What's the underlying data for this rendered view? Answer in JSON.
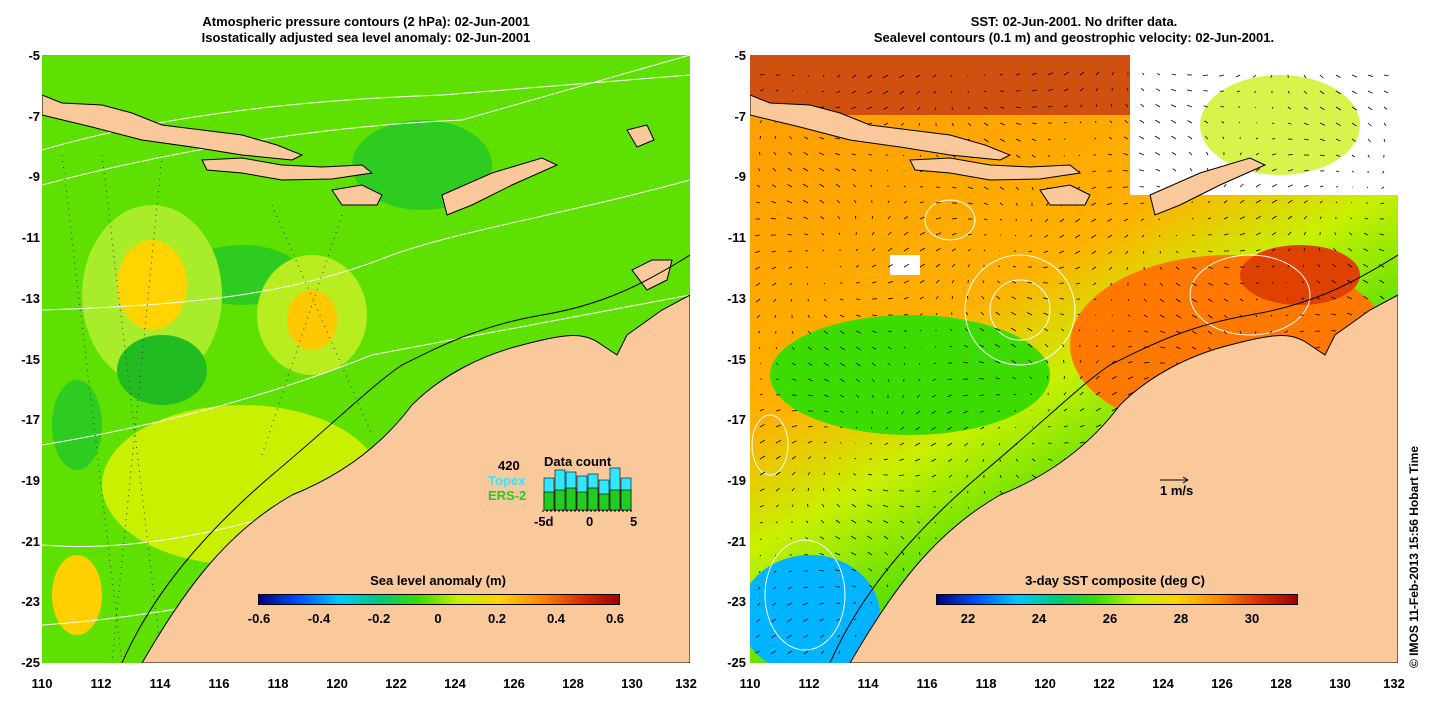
{
  "left_panel": {
    "title_line1": "Atmospheric pressure contours (2 hPa): 02-Jun-2001",
    "title_line2": "Isostatically adjusted sea level anomaly: 02-Jun-2001",
    "colorbar": {
      "title": "Sea level anomaly (m)",
      "ticks": [
        "-0.6",
        "-0.4",
        "-0.2",
        "0",
        "0.2",
        "0.4",
        "0.6"
      ],
      "colors": [
        "#00007f",
        "#0050ff",
        "#00c8ff",
        "#00c878",
        "#3cdc00",
        "#c8f000",
        "#ffd200",
        "#ff8c00",
        "#e03000",
        "#a00000"
      ]
    },
    "inset": {
      "max_count": "420",
      "title": "Data count",
      "series": [
        {
          "name": "Topex",
          "color": "#33e6ff"
        },
        {
          "name": "ERS-2",
          "color": "#22cc22"
        }
      ],
      "xticks": [
        "-5d",
        "0",
        "5"
      ]
    }
  },
  "right_panel": {
    "title_line1": "SST: 02-Jun-2001. No drifter data.",
    "title_line2": "Sealevel contours (0.1 m) and geostrophic velocity: 02-Jun-2001.",
    "scale_label": "1 m/s",
    "colorbar": {
      "title": "3-day SST composite (deg C)",
      "ticks": [
        "22",
        "24",
        "26",
        "28",
        "30"
      ],
      "colors": [
        "#00007f",
        "#0050ff",
        "#00c8ff",
        "#00c878",
        "#3cdc00",
        "#c8f000",
        "#ffd200",
        "#ff8c00",
        "#e03000",
        "#a00000"
      ]
    }
  },
  "axes": {
    "y_ticks": [
      "-5",
      "-7",
      "-9",
      "-11",
      "-13",
      "-15",
      "-17",
      "-19",
      "-21",
      "-23",
      "-25"
    ],
    "x_ticks": [
      "110",
      "112",
      "114",
      "116",
      "118",
      "120",
      "122",
      "124",
      "126",
      "128",
      "130",
      "132"
    ]
  },
  "credit": "© IMOS 11-Feb-2013 15:56 Hobart Time",
  "colors": {
    "land": "#f9c89b",
    "coast": "#000000",
    "contour": "#ffffff"
  }
}
